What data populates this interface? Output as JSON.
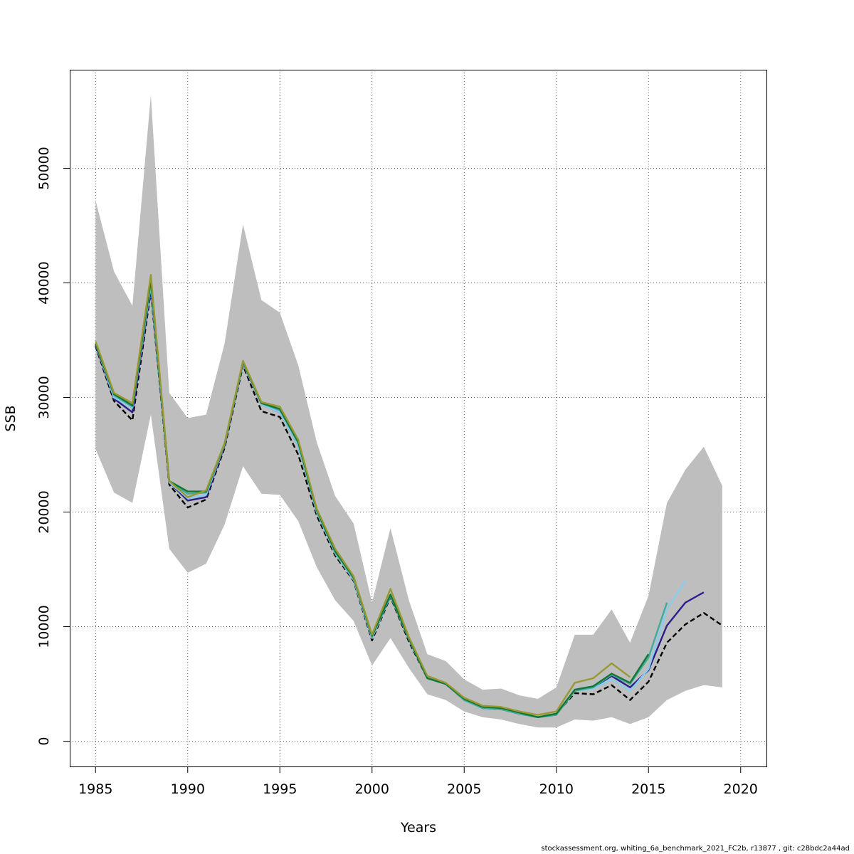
{
  "chart_data": {
    "type": "line",
    "xlabel": "Years",
    "ylabel": "SSB",
    "xlim": [
      1983.6,
      2021.4
    ],
    "ylim": [
      -2200,
      58600
    ],
    "x_ticks": [
      1985,
      1990,
      1995,
      2000,
      2005,
      2010,
      2015,
      2020
    ],
    "y_ticks": [
      0,
      10000,
      20000,
      30000,
      40000,
      50000
    ],
    "grid": true,
    "grid_style": "dotted",
    "confidence_band": {
      "color": "#bebebe",
      "x": [
        1985,
        1986,
        1987,
        1988,
        1989,
        1990,
        1991,
        1992,
        1993,
        1994,
        1995,
        1996,
        1997,
        1998,
        1999,
        2000,
        2001,
        2002,
        2003,
        2004,
        2005,
        2006,
        2007,
        2008,
        2009,
        2010,
        2011,
        2012,
        2013,
        2014,
        2015,
        2016,
        2017,
        2018,
        2019
      ],
      "upper": [
        47200,
        41000,
        38000,
        56400,
        30400,
        28200,
        28500,
        34700,
        45100,
        38500,
        37400,
        32800,
        26100,
        21400,
        19000,
        12100,
        18600,
        12300,
        7600,
        7000,
        5400,
        4500,
        4600,
        4000,
        3700,
        4700,
        9300,
        9300,
        11500,
        8600,
        12700,
        20800,
        23700,
        25700,
        22300
      ],
      "lower": [
        25500,
        21700,
        20800,
        28500,
        16800,
        14700,
        15500,
        18900,
        24000,
        21600,
        21500,
        19200,
        15200,
        12300,
        10500,
        6600,
        9000,
        6400,
        4100,
        3600,
        2600,
        2100,
        1900,
        1500,
        1200,
        1200,
        1900,
        1800,
        2100,
        1500,
        2100,
        3600,
        4400,
        4900,
        4700
      ]
    },
    "series": [
      {
        "color": "#000000",
        "dashed": true,
        "x": [
          1985,
          1986,
          1987,
          1988,
          1989,
          1990,
          1991,
          1992,
          1993,
          1994,
          1995,
          1996,
          1997,
          1998,
          1999,
          2000,
          2001,
          2002,
          2003,
          2004,
          2005,
          2006,
          2007,
          2008,
          2009,
          2010,
          2011,
          2012,
          2013,
          2014,
          2015,
          2016,
          2017,
          2018,
          2019
        ],
        "values": [
          34500,
          29700,
          28000,
          39300,
          22400,
          20400,
          21100,
          25600,
          32800,
          28800,
          28300,
          25000,
          19700,
          16200,
          14000,
          8800,
          12600,
          8700,
          5500,
          5000,
          3600,
          2900,
          2800,
          2400,
          2100,
          2400,
          4200,
          4100,
          4900,
          3600,
          5200,
          8600,
          10200,
          11200,
          10100
        ]
      },
      {
        "color": "#2a1d8c",
        "dashed": false,
        "x": [
          1985,
          1986,
          1987,
          1988,
          1989,
          1990,
          1991,
          1992,
          1993,
          1994,
          1995,
          1996,
          1997,
          1998,
          1999,
          2000,
          2001,
          2002,
          2003,
          2004,
          2005,
          2006,
          2007,
          2008,
          2009,
          2010,
          2011,
          2012,
          2013,
          2014,
          2015,
          2016,
          2017,
          2018
        ],
        "values": [
          34600,
          29900,
          28700,
          39600,
          22600,
          21000,
          21300,
          25800,
          33000,
          29400,
          28700,
          25800,
          20000,
          16400,
          14100,
          9000,
          12700,
          8900,
          5500,
          5000,
          3600,
          2900,
          2800,
          2400,
          2100,
          2400,
          4400,
          4700,
          5700,
          4700,
          6200,
          10100,
          12100,
          13000
        ]
      },
      {
        "color": "#88ccee",
        "dashed": false,
        "x": [
          1985,
          1986,
          1987,
          1988,
          1989,
          1990,
          1991,
          1992,
          1993,
          1994,
          1995,
          1996,
          1997,
          1998,
          1999,
          2000,
          2001,
          2002,
          2003,
          2004,
          2005,
          2006,
          2007,
          2008,
          2009,
          2010,
          2011,
          2012,
          2013,
          2014,
          2015,
          2016,
          2017
        ],
        "values": [
          34700,
          30000,
          29100,
          39800,
          22600,
          21200,
          21500,
          25900,
          33000,
          29400,
          28700,
          25800,
          20000,
          16400,
          14100,
          9000,
          12700,
          8900,
          5500,
          5000,
          3600,
          2900,
          2800,
          2400,
          2100,
          2300,
          4400,
          4600,
          5400,
          4400,
          6300,
          11500,
          14000
        ]
      },
      {
        "color": "#44aa99",
        "dashed": false,
        "x": [
          1985,
          1986,
          1987,
          1988,
          1989,
          1990,
          1991,
          1992,
          1993,
          1994,
          1995,
          1996,
          1997,
          1998,
          1999,
          2000,
          2001,
          2002,
          2003,
          2004,
          2005,
          2006,
          2007,
          2008,
          2009,
          2010,
          2011,
          2012,
          2013,
          2014,
          2015,
          2016
        ],
        "values": [
          34700,
          30200,
          29200,
          40000,
          22700,
          21600,
          21700,
          25900,
          33100,
          29500,
          28900,
          26000,
          20100,
          16500,
          14200,
          9100,
          12700,
          8900,
          5500,
          5000,
          3600,
          2900,
          2800,
          2400,
          2100,
          2300,
          4400,
          4700,
          5800,
          5000,
          7300,
          12100
        ]
      },
      {
        "color": "#117733",
        "dashed": false,
        "x": [
          1985,
          1986,
          1987,
          1988,
          1989,
          1990,
          1991,
          1992,
          1993,
          1994,
          1995,
          1996,
          1997,
          1998,
          1999,
          2000,
          2001,
          2002,
          2003,
          2004,
          2005,
          2006,
          2007,
          2008,
          2009,
          2010,
          2011,
          2012,
          2013,
          2014,
          2015
        ],
        "values": [
          34700,
          30300,
          29300,
          40300,
          22700,
          21800,
          21800,
          26000,
          33100,
          29500,
          29000,
          26100,
          20200,
          16600,
          14300,
          9200,
          12800,
          9000,
          5500,
          5000,
          3700,
          3000,
          2900,
          2500,
          2100,
          2400,
          4500,
          4800,
          5900,
          5100,
          7600
        ]
      },
      {
        "color": "#999933",
        "dashed": false,
        "x": [
          1985,
          1986,
          1987,
          1988,
          1989,
          1990,
          1991,
          1992,
          1993,
          1994,
          1995,
          1996,
          1997,
          1998,
          1999,
          2000,
          2001,
          2002,
          2003,
          2004,
          2005,
          2006,
          2007,
          2008,
          2009,
          2010,
          2011,
          2012,
          2013,
          2014
        ],
        "values": [
          34900,
          30400,
          29500,
          40700,
          22700,
          21300,
          21900,
          26000,
          33200,
          29600,
          29200,
          26300,
          20300,
          16800,
          14400,
          9300,
          13300,
          9100,
          5700,
          5100,
          3800,
          3100,
          3000,
          2600,
          2300,
          2600,
          5100,
          5500,
          6800,
          5600
        ]
      }
    ]
  },
  "footer": "stockassessment.org, whiting_6a_benchmark_2021_FC2b, r13877 , git: c28bdc2a44ad"
}
